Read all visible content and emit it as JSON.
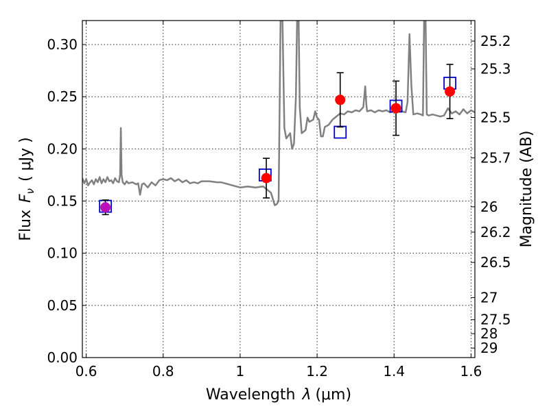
{
  "chart_data": {
    "type": "scatter",
    "xlabel": "Wavelength",
    "xlabel_symbol": "λ",
    "xlabel_unit": "(μm)",
    "ylabel": "Flux",
    "ylabel_symbol": "F",
    "ylabel_subscript": "ν",
    "ylabel_unit": "( μJy )",
    "y2label": "Magnitude (AB)",
    "xlim": [
      0.59,
      1.61
    ],
    "ylim": [
      0.0,
      0.323
    ],
    "grid": true,
    "x_ticks": [
      {
        "value": 0.6,
        "label": "0.6"
      },
      {
        "value": 0.8,
        "label": "0.8"
      },
      {
        "value": 1.0,
        "label": "1"
      },
      {
        "value": 1.2,
        "label": "1.2"
      },
      {
        "value": 1.4,
        "label": "1.4"
      },
      {
        "value": 1.6,
        "label": "1.6"
      }
    ],
    "y_ticks": [
      {
        "value": 0.0,
        "label": "0.00"
      },
      {
        "value": 0.05,
        "label": "0.05"
      },
      {
        "value": 0.1,
        "label": "0.10"
      },
      {
        "value": 0.15,
        "label": "0.15"
      },
      {
        "value": 0.2,
        "label": "0.20"
      },
      {
        "value": 0.25,
        "label": "0.25"
      },
      {
        "value": 0.3,
        "label": "0.30"
      }
    ],
    "y2_ticks": [
      {
        "label": "25.2",
        "flux": 0.3033
      },
      {
        "label": "25.3",
        "flux": 0.2766
      },
      {
        "label": "25.5",
        "flux": 0.2301
      },
      {
        "label": "25.7",
        "flux": 0.1914
      },
      {
        "label": "26",
        "flux": 0.1445
      },
      {
        "label": "26.2",
        "flux": 0.1202
      },
      {
        "label": "26.5",
        "flux": 0.0912
      },
      {
        "label": "27",
        "flux": 0.0575
      },
      {
        "label": "27.5",
        "flux": 0.0363
      },
      {
        "label": "28",
        "flux": 0.0229
      },
      {
        "label": "29",
        "flux": 0.0091
      }
    ],
    "series": [
      {
        "kind": "line",
        "color": "#808080",
        "points": [
          [
            0.59,
            0.172
          ],
          [
            0.595,
            0.167
          ],
          [
            0.6,
            0.171
          ],
          [
            0.605,
            0.165
          ],
          [
            0.61,
            0.168
          ],
          [
            0.615,
            0.17
          ],
          [
            0.62,
            0.166
          ],
          [
            0.625,
            0.171
          ],
          [
            0.63,
            0.168
          ],
          [
            0.635,
            0.173
          ],
          [
            0.64,
            0.167
          ],
          [
            0.645,
            0.171
          ],
          [
            0.65,
            0.168
          ],
          [
            0.655,
            0.173
          ],
          [
            0.66,
            0.169
          ],
          [
            0.665,
            0.17
          ],
          [
            0.67,
            0.167
          ],
          [
            0.675,
            0.172
          ],
          [
            0.68,
            0.169
          ],
          [
            0.685,
            0.168
          ],
          [
            0.688,
            0.175
          ],
          [
            0.69,
            0.22
          ],
          [
            0.692,
            0.175
          ],
          [
            0.695,
            0.168
          ],
          [
            0.7,
            0.166
          ],
          [
            0.705,
            0.169
          ],
          [
            0.71,
            0.167
          ],
          [
            0.72,
            0.168
          ],
          [
            0.73,
            0.166
          ],
          [
            0.735,
            0.167
          ],
          [
            0.74,
            0.156
          ],
          [
            0.745,
            0.166
          ],
          [
            0.75,
            0.167
          ],
          [
            0.76,
            0.163
          ],
          [
            0.77,
            0.168
          ],
          [
            0.78,
            0.165
          ],
          [
            0.79,
            0.17
          ],
          [
            0.8,
            0.171
          ],
          [
            0.81,
            0.17
          ],
          [
            0.82,
            0.172
          ],
          [
            0.83,
            0.169
          ],
          [
            0.84,
            0.171
          ],
          [
            0.85,
            0.168
          ],
          [
            0.86,
            0.17
          ],
          [
            0.87,
            0.167
          ],
          [
            0.88,
            0.168
          ],
          [
            0.89,
            0.167
          ],
          [
            0.9,
            0.169
          ],
          [
            0.92,
            0.169
          ],
          [
            0.94,
            0.168
          ],
          [
            0.95,
            0.168
          ],
          [
            0.97,
            0.166
          ],
          [
            0.99,
            0.164
          ],
          [
            1.0,
            0.163
          ],
          [
            1.02,
            0.164
          ],
          [
            1.04,
            0.163
          ],
          [
            1.06,
            0.164
          ],
          [
            1.07,
            0.161
          ],
          [
            1.08,
            0.158
          ],
          [
            1.09,
            0.146
          ],
          [
            1.095,
            0.147
          ],
          [
            1.1,
            0.15
          ],
          [
            1.105,
            0.323
          ],
          [
            1.11,
            0.323
          ],
          [
            1.115,
            0.22
          ],
          [
            1.12,
            0.21
          ],
          [
            1.13,
            0.215
          ],
          [
            1.135,
            0.2
          ],
          [
            1.14,
            0.205
          ],
          [
            1.145,
            0.25
          ],
          [
            1.148,
            0.323
          ],
          [
            1.152,
            0.323
          ],
          [
            1.155,
            0.24
          ],
          [
            1.16,
            0.215
          ],
          [
            1.17,
            0.218
          ],
          [
            1.175,
            0.23
          ],
          [
            1.18,
            0.226
          ],
          [
            1.19,
            0.228
          ],
          [
            1.195,
            0.236
          ],
          [
            1.2,
            0.23
          ],
          [
            1.205,
            0.228
          ],
          [
            1.21,
            0.212
          ],
          [
            1.215,
            0.212
          ],
          [
            1.22,
            0.221
          ],
          [
            1.23,
            0.223
          ],
          [
            1.24,
            0.228
          ],
          [
            1.25,
            0.231
          ],
          [
            1.26,
            0.234
          ],
          [
            1.27,
            0.233
          ],
          [
            1.28,
            0.236
          ],
          [
            1.29,
            0.235
          ],
          [
            1.3,
            0.237
          ],
          [
            1.31,
            0.236
          ],
          [
            1.32,
            0.24
          ],
          [
            1.325,
            0.26
          ],
          [
            1.328,
            0.242
          ],
          [
            1.33,
            0.236
          ],
          [
            1.34,
            0.237
          ],
          [
            1.35,
            0.235
          ],
          [
            1.36,
            0.237
          ],
          [
            1.37,
            0.236
          ],
          [
            1.38,
            0.237
          ],
          [
            1.39,
            0.235
          ],
          [
            1.4,
            0.236
          ],
          [
            1.41,
            0.237
          ],
          [
            1.42,
            0.236
          ],
          [
            1.43,
            0.235
          ],
          [
            1.435,
            0.245
          ],
          [
            1.44,
            0.31
          ],
          [
            1.445,
            0.26
          ],
          [
            1.45,
            0.233
          ],
          [
            1.46,
            0.234
          ],
          [
            1.47,
            0.233
          ],
          [
            1.475,
            0.232
          ],
          [
            1.478,
            0.323
          ],
          [
            1.482,
            0.323
          ],
          [
            1.485,
            0.233
          ],
          [
            1.49,
            0.232
          ],
          [
            1.5,
            0.233
          ],
          [
            1.51,
            0.232
          ],
          [
            1.52,
            0.231
          ],
          [
            1.53,
            0.232
          ],
          [
            1.54,
            0.239
          ],
          [
            1.55,
            0.234
          ],
          [
            1.56,
            0.236
          ],
          [
            1.57,
            0.233
          ],
          [
            1.58,
            0.238
          ],
          [
            1.59,
            0.234
          ],
          [
            1.6,
            0.237
          ],
          [
            1.61,
            0.235
          ]
        ]
      },
      {
        "kind": "model-squares",
        "color": "#0000cc",
        "points": [
          {
            "x": 0.65,
            "y": 0.145
          },
          {
            "x": 1.065,
            "y": 0.175
          },
          {
            "x": 1.26,
            "y": 0.216
          },
          {
            "x": 1.405,
            "y": 0.241
          },
          {
            "x": 1.545,
            "y": 0.263
          }
        ]
      },
      {
        "kind": "observed-points",
        "color": "#ff0000",
        "points": [
          {
            "x": 0.65,
            "y": 0.144,
            "yerr": 0.007,
            "color": "#bb11bb"
          },
          {
            "x": 1.068,
            "y": 0.172,
            "yerr": 0.019
          },
          {
            "x": 1.26,
            "y": 0.247,
            "yerr": 0.026
          },
          {
            "x": 1.405,
            "y": 0.239,
            "yerr": 0.026
          },
          {
            "x": 1.545,
            "y": 0.255,
            "yerr": 0.026
          }
        ]
      }
    ]
  }
}
